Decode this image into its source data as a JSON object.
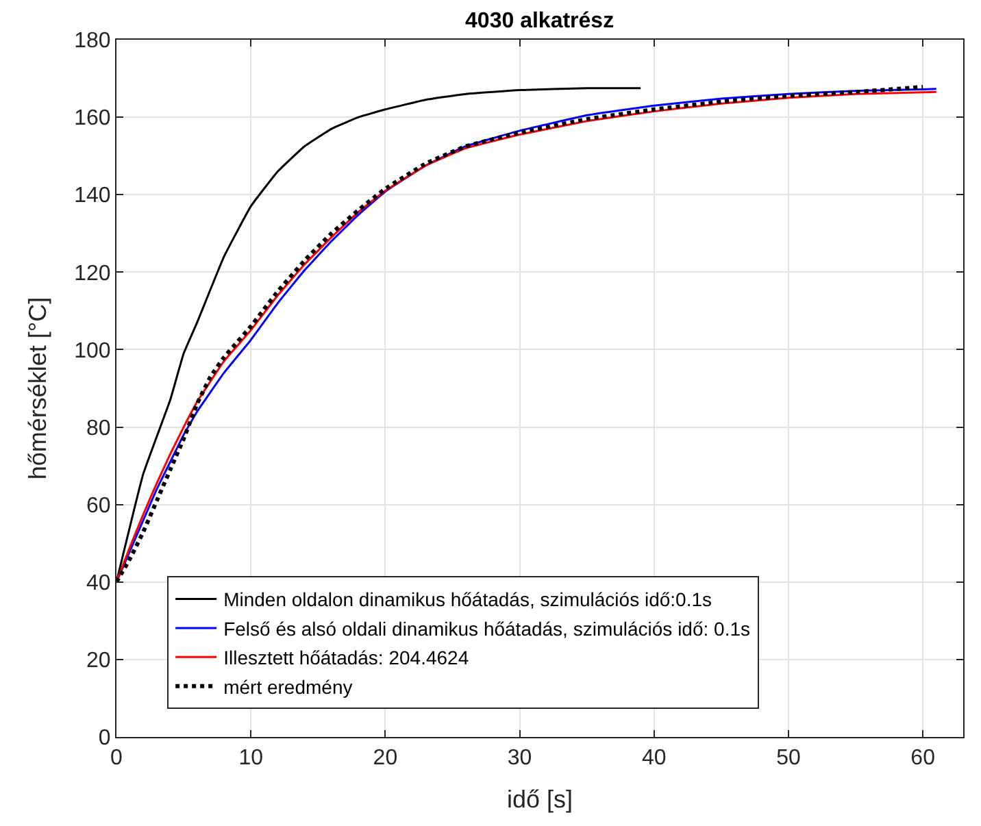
{
  "chart_data": {
    "type": "line",
    "title": "4030 alkatrész",
    "xlabel": "idő [s]",
    "ylabel": "hőmérséklet [°C]",
    "xlim": [
      0,
      63
    ],
    "xticks": [
      0,
      10,
      20,
      30,
      40,
      50,
      60
    ],
    "ylim": [
      0,
      180
    ],
    "yticks": [
      0,
      20,
      40,
      60,
      80,
      100,
      120,
      140,
      160,
      180
    ],
    "grid": true,
    "legend": "bottom",
    "marker": "none",
    "series": [
      {
        "name": "Minden oldalon dinamikus hőátadás, szimulációs idő:0.1s",
        "color": "#000000",
        "line_style": "solid",
        "x": [
          0,
          2,
          4,
          5,
          6,
          8,
          10,
          12,
          14,
          16,
          18,
          20,
          23,
          26,
          30,
          35,
          39
        ],
        "values": [
          40,
          68,
          87,
          99,
          107,
          124,
          137,
          146,
          152.5,
          157,
          160,
          162,
          164.5,
          166,
          167,
          167.5,
          167.5
        ]
      },
      {
        "name": "Felső és alsó oldali dinamikus hőátadás, szimulációs idő: 0.1s",
        "color": "#0000ff",
        "line_style": "solid",
        "x": [
          0,
          1,
          2,
          3,
          4,
          5,
          6,
          8,
          10,
          12,
          14,
          16,
          18,
          20,
          23,
          26,
          30,
          35,
          40,
          45,
          50,
          55,
          60,
          61
        ],
        "values": [
          40,
          48,
          56,
          64,
          71,
          78,
          84,
          94,
          102.5,
          112,
          120.5,
          128,
          134.8,
          140.8,
          147.5,
          152.5,
          156.5,
          160.5,
          163,
          164.8,
          166,
          166.8,
          167.2,
          167.3
        ]
      },
      {
        "name": "Illesztett hőátadás: 204.4624",
        "color": "#ff0000",
        "line_style": "solid",
        "x": [
          0,
          1,
          2,
          3,
          4,
          5,
          6,
          8,
          10,
          12,
          14,
          16,
          18,
          20,
          23,
          26,
          30,
          35,
          40,
          45,
          50,
          55,
          61
        ],
        "values": [
          40,
          49,
          57.5,
          65.5,
          73,
          80,
          86.5,
          97,
          105,
          114,
          122,
          129,
          135.5,
          141,
          147.5,
          152,
          155.5,
          159,
          161.5,
          163.5,
          165,
          166,
          166.5
        ]
      },
      {
        "name": "mért eredmény",
        "color": "#000000",
        "line_style": "dotted",
        "x": [
          0,
          1,
          2,
          3,
          4,
          5,
          6,
          7,
          8,
          10,
          12,
          14,
          16,
          18,
          20,
          23,
          26,
          30,
          35,
          40,
          45,
          50,
          55,
          60
        ],
        "values": [
          40,
          46,
          53,
          61,
          69,
          77,
          86,
          93,
          98,
          106,
          115,
          123,
          130,
          136,
          141.5,
          148,
          152.5,
          156,
          159.5,
          162,
          164,
          165.5,
          166.5,
          167.8
        ]
      }
    ]
  }
}
